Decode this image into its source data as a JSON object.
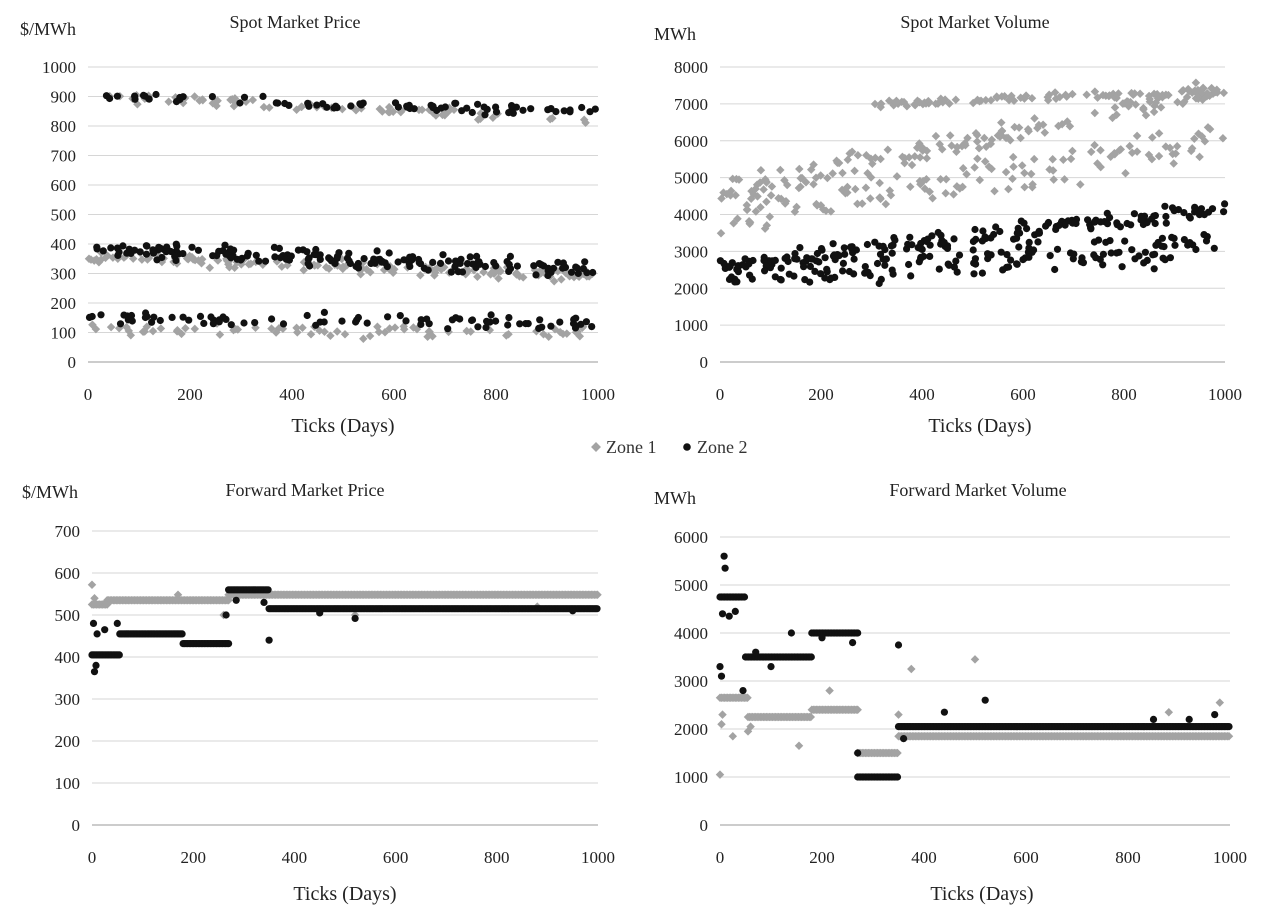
{
  "legend": {
    "zone1": "Zone 1",
    "zone2": "Zone 2",
    "zone1_color": "#a3a3a3",
    "zone2_color": "#111111"
  },
  "chart_data": [
    {
      "id": "spot-price",
      "type": "scatter",
      "title": "Spot Market Price",
      "ylabel": "$/MWh",
      "xlabel": "Ticks (Days)",
      "xlim": [
        0,
        1000
      ],
      "ylim": [
        0,
        1000
      ],
      "xticks": [
        0,
        200,
        400,
        600,
        800,
        1000
      ],
      "yticks": [
        0,
        100,
        200,
        300,
        400,
        500,
        600,
        700,
        800,
        900,
        1000
      ],
      "grid": true,
      "series": [
        {
          "name": "Zone 1",
          "marker": "diamond",
          "color": "#a3a3a3",
          "bands": [
            {
              "x": [
                0,
                1000
              ],
              "y": [
                900,
                820
              ],
              "spread": 25,
              "n": 70
            },
            {
              "x": [
                0,
                1000
              ],
              "y": [
                360,
                290
              ],
              "spread": 30,
              "n": 150
            },
            {
              "x": [
                0,
                1000
              ],
              "y": [
                110,
                100
              ],
              "spread": 30,
              "n": 70
            }
          ]
        },
        {
          "name": "Zone 2",
          "marker": "circle",
          "color": "#111111",
          "bands": [
            {
              "x": [
                0,
                1000
              ],
              "y": [
                905,
                845
              ],
              "spread": 25,
              "n": 75
            },
            {
              "x": [
                0,
                1000
              ],
              "y": [
                385,
                315
              ],
              "spread": 40,
              "n": 170
            },
            {
              "x": [
                0,
                1000
              ],
              "y": [
                145,
                130
              ],
              "spread": 35,
              "n": 80
            }
          ]
        }
      ]
    },
    {
      "id": "spot-volume",
      "type": "scatter",
      "title": "Spot Market Volume",
      "ylabel": "MWh",
      "xlabel": "Ticks (Days)",
      "xlim": [
        0,
        1000
      ],
      "ylim": [
        0,
        8000
      ],
      "xticks": [
        0,
        200,
        400,
        600,
        800,
        1000
      ],
      "yticks": [
        0,
        1000,
        2000,
        3000,
        4000,
        5000,
        6000,
        7000,
        8000
      ],
      "grid": true,
      "series": [
        {
          "name": "Zone 1",
          "marker": "diamond",
          "color": "#a3a3a3",
          "bands": [
            {
              "x": [
                0,
                1000
              ],
              "y": [
                4600,
                7400
              ],
              "spread": 500,
              "n": 140
            },
            {
              "x": [
                0,
                1000
              ],
              "y": [
                4000,
                6000
              ],
              "spread": 900,
              "n": 140
            },
            {
              "x": [
                300,
                1000
              ],
              "y": [
                7000,
                7350
              ],
              "spread": 150,
              "n": 90
            }
          ]
        },
        {
          "name": "Zone 2",
          "marker": "circle",
          "color": "#111111",
          "bands": [
            {
              "x": [
                0,
                1000
              ],
              "y": [
                2600,
                4200
              ],
              "spread": 350,
              "n": 170
            },
            {
              "x": [
                0,
                1000
              ],
              "y": [
                2300,
                3200
              ],
              "spread": 700,
              "n": 150
            }
          ]
        }
      ]
    },
    {
      "id": "forward-price",
      "type": "scatter",
      "title": "Forward Market Price",
      "ylabel": "$/MWh",
      "xlabel": "Ticks (Days)",
      "xlim": [
        0,
        1000
      ],
      "ylim": [
        0,
        700
      ],
      "xticks": [
        0,
        200,
        400,
        600,
        800,
        1000
      ],
      "yticks": [
        0,
        100,
        200,
        300,
        400,
        500,
        600,
        700
      ],
      "grid": true,
      "series": [
        {
          "name": "Zone 1",
          "marker": "diamond",
          "color": "#a3a3a3",
          "steps": [
            {
              "x": [
                0,
                30
              ],
              "y": 525
            },
            {
              "x": 30,
              "x2": 270,
              "y": 535
            },
            {
              "x": [
                270,
                1000
              ],
              "y": 548
            }
          ],
          "points": [
            [
              0,
              572
            ],
            [
              5,
              540
            ],
            [
              170,
              548
            ],
            [
              260,
              500
            ],
            [
              520,
              500
            ],
            [
              880,
              520
            ]
          ]
        },
        {
          "name": "Zone 2",
          "marker": "circle",
          "color": "#111111",
          "steps": [
            {
              "x": [
                0,
                55
              ],
              "y": 405
            },
            {
              "x": [
                55,
                180
              ],
              "y": 455
            },
            {
              "x": [
                180,
                270
              ],
              "y": 432
            },
            {
              "x": [
                270,
                350
              ],
              "y": 560
            },
            {
              "x": [
                350,
                1000
              ],
              "y": 515
            }
          ],
          "points": [
            [
              5,
              365
            ],
            [
              8,
              380
            ],
            [
              3,
              480
            ],
            [
              10,
              455
            ],
            [
              25,
              465
            ],
            [
              50,
              480
            ],
            [
              265,
              500
            ],
            [
              285,
              535
            ],
            [
              350,
              440
            ],
            [
              340,
              530
            ],
            [
              450,
              505
            ],
            [
              520,
              492
            ],
            [
              950,
              510
            ]
          ]
        }
      ]
    },
    {
      "id": "forward-volume",
      "type": "scatter",
      "title": "Forward Market Volume",
      "ylabel": "MWh",
      "xlabel": "Ticks (Days)",
      "xlim": [
        0,
        1000
      ],
      "ylim": [
        0,
        6000
      ],
      "xticks": [
        0,
        200,
        400,
        600,
        800,
        1000
      ],
      "yticks": [
        0,
        1000,
        2000,
        3000,
        4000,
        5000,
        6000
      ],
      "grid": true,
      "series": [
        {
          "name": "Zone 1",
          "marker": "diamond",
          "color": "#a3a3a3",
          "steps": [
            {
              "x": [
                0,
                55
              ],
              "y": 2650
            },
            {
              "x": [
                55,
                180
              ],
              "y": 2250
            },
            {
              "x": [
                180,
                270
              ],
              "y": 2400
            },
            {
              "x": [
                270,
                350
              ],
              "y": 1500
            },
            {
              "x": [
                350,
                1000
              ],
              "y": 1850
            }
          ],
          "points": [
            [
              0,
              1050
            ],
            [
              3,
              2100
            ],
            [
              5,
              2300
            ],
            [
              25,
              1850
            ],
            [
              55,
              1950
            ],
            [
              60,
              2050
            ],
            [
              155,
              1650
            ],
            [
              215,
              2800
            ],
            [
              350,
              2300
            ],
            [
              375,
              3250
            ],
            [
              500,
              3450
            ],
            [
              880,
              2350
            ],
            [
              980,
              2550
            ]
          ]
        },
        {
          "name": "Zone 2",
          "marker": "circle",
          "color": "#111111",
          "steps": [
            {
              "x": [
                0,
                50
              ],
              "y": 4750
            },
            {
              "x": [
                50,
                180
              ],
              "y": 3500
            },
            {
              "x": [
                180,
                270
              ],
              "y": 4000
            },
            {
              "x": [
                270,
                350
              ],
              "y": 1000
            },
            {
              "x": [
                350,
                1000
              ],
              "y": 2050
            }
          ],
          "points": [
            [
              0,
              3300
            ],
            [
              3,
              3100
            ],
            [
              8,
              5600
            ],
            [
              10,
              5350
            ],
            [
              5,
              4400
            ],
            [
              18,
              4350
            ],
            [
              30,
              4450
            ],
            [
              45,
              2800
            ],
            [
              70,
              3600
            ],
            [
              100,
              3300
            ],
            [
              140,
              4000
            ],
            [
              200,
              3900
            ],
            [
              260,
              3800
            ],
            [
              270,
              1500
            ],
            [
              350,
              3750
            ],
            [
              360,
              1800
            ],
            [
              440,
              2350
            ],
            [
              520,
              2600
            ],
            [
              850,
              2200
            ],
            [
              920,
              2200
            ],
            [
              970,
              2300
            ]
          ]
        }
      ]
    }
  ]
}
